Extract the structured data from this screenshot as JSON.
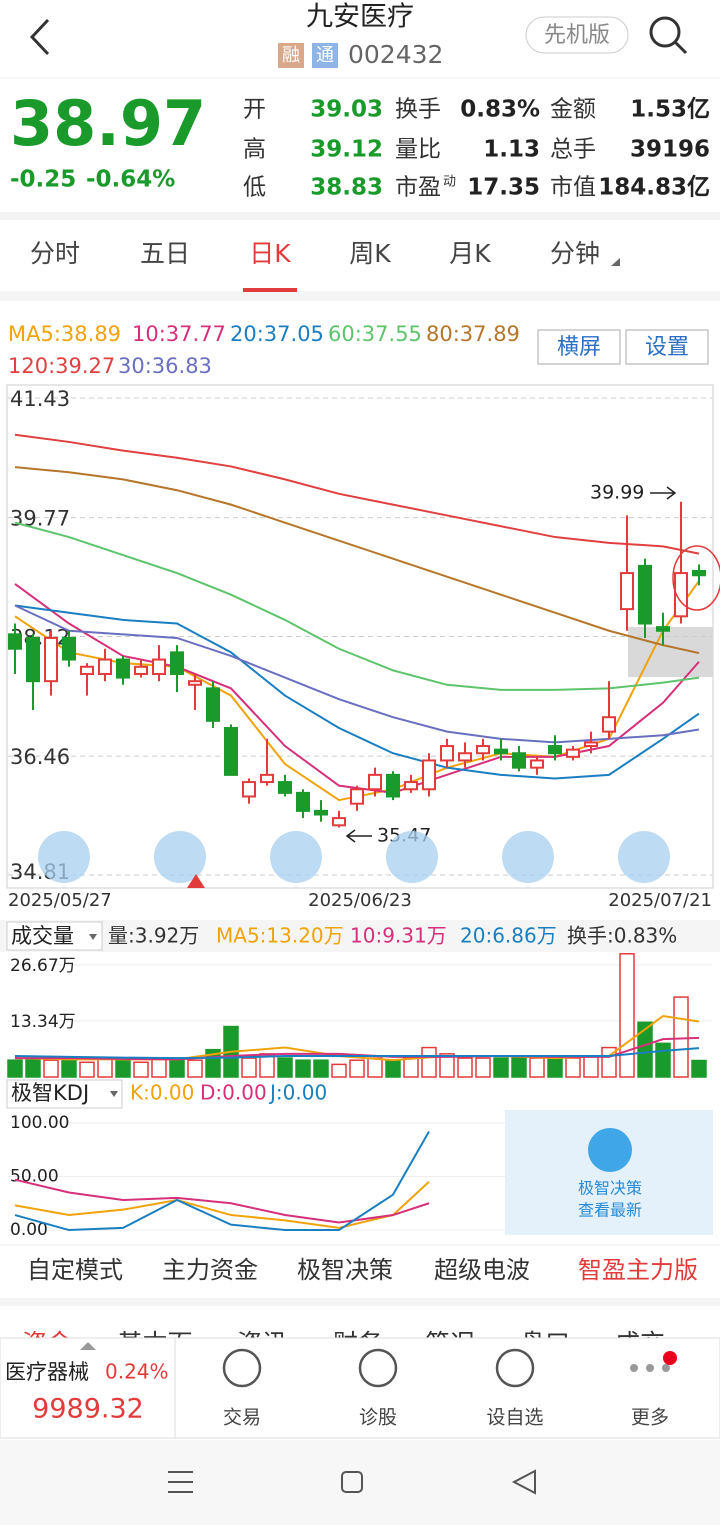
{
  "header": {
    "title": "九安医疗",
    "tags": [
      "融",
      "通"
    ],
    "code": "002432",
    "mode": "先机版"
  },
  "quote": {
    "price": "38.97",
    "change": "-0.25",
    "pct": "-0.64%",
    "fields": [
      {
        "label": "开",
        "value": "39.03"
      },
      {
        "label": "换手",
        "value": "0.83%"
      },
      {
        "label": "金额",
        "value": "1.53亿"
      },
      {
        "label": "高",
        "value": "39.12"
      },
      {
        "label": "量比",
        "value": "1.13"
      },
      {
        "label": "总手",
        "value": "39196"
      },
      {
        "label": "低",
        "value": "38.83"
      },
      {
        "label": "市盈",
        "sup": "动",
        "value": "17.35"
      },
      {
        "label": "市值",
        "value": "184.83亿"
      }
    ]
  },
  "tabs": [
    "分时",
    "五日",
    "日K",
    "周K",
    "月K",
    "分钟"
  ],
  "active_tab": 2,
  "buttons": [
    "横屏",
    "设置"
  ],
  "chart": {
    "type": "candlestick",
    "ylim": [
      34.63,
      41.61
    ],
    "yticks": [
      41.43,
      39.77,
      38.12,
      36.46,
      34.81
    ],
    "x_labels": [
      "2025/05/27",
      "2025/06/23",
      "2025/07/21"
    ],
    "up_color": "#e23b3b",
    "down_color": "#1a9a2a",
    "candles": [
      [
        38.15,
        38.3,
        37.6,
        37.95
      ],
      [
        38.1,
        38.15,
        37.1,
        37.5
      ],
      [
        37.5,
        38.2,
        37.3,
        38.1
      ],
      [
        38.1,
        38.2,
        37.7,
        37.8
      ],
      [
        37.6,
        37.75,
        37.3,
        37.7
      ],
      [
        37.6,
        37.95,
        37.5,
        37.8
      ],
      [
        37.8,
        37.85,
        37.45,
        37.55
      ],
      [
        37.6,
        37.8,
        37.55,
        37.7
      ],
      [
        37.6,
        38.0,
        37.5,
        37.8
      ],
      [
        37.9,
        38.0,
        37.35,
        37.6
      ],
      [
        37.45,
        37.6,
        37.1,
        37.5
      ],
      [
        37.4,
        37.5,
        36.85,
        36.95
      ],
      [
        36.85,
        36.9,
        36.2,
        36.2
      ],
      [
        35.9,
        36.15,
        35.8,
        36.1
      ],
      [
        36.1,
        36.7,
        36.05,
        36.2
      ],
      [
        36.1,
        36.2,
        35.9,
        35.95
      ],
      [
        35.95,
        36.0,
        35.6,
        35.7
      ],
      [
        35.7,
        35.85,
        35.55,
        35.65
      ],
      [
        35.5,
        35.7,
        35.47,
        35.6
      ],
      [
        35.8,
        36.05,
        35.7,
        36.0
      ],
      [
        36.0,
        36.3,
        35.9,
        36.2
      ],
      [
        36.2,
        36.25,
        35.85,
        35.9
      ],
      [
        36.0,
        36.2,
        35.95,
        36.1
      ],
      [
        36.0,
        36.5,
        35.9,
        36.4
      ],
      [
        36.4,
        36.7,
        36.3,
        36.6
      ],
      [
        36.4,
        36.65,
        36.3,
        36.5
      ],
      [
        36.5,
        36.7,
        36.4,
        36.6
      ],
      [
        36.55,
        36.7,
        36.4,
        36.5
      ],
      [
        36.5,
        36.6,
        36.25,
        36.3
      ],
      [
        36.3,
        36.45,
        36.2,
        36.4
      ],
      [
        36.6,
        36.75,
        36.4,
        36.5
      ],
      [
        36.45,
        36.6,
        36.4,
        36.55
      ],
      [
        36.6,
        36.8,
        36.5,
        36.65
      ],
      [
        36.8,
        37.5,
        36.7,
        37.0
      ],
      [
        38.5,
        39.8,
        38.2,
        39.0
      ],
      [
        39.1,
        39.2,
        38.1,
        38.3
      ],
      [
        38.25,
        38.45,
        38.0,
        38.2
      ],
      [
        38.4,
        39.99,
        38.3,
        39.0
      ],
      [
        39.03,
        39.12,
        38.83,
        38.97
      ]
    ],
    "annotations": [
      "39.99",
      "35.47"
    ],
    "ma_x": [
      0,
      3,
      6,
      9,
      12,
      15,
      18,
      21,
      24,
      27,
      30,
      33,
      36,
      38
    ],
    "mas": [
      {
        "label": "MA5:38.89",
        "color": "#f0a30a",
        "values": [
          38.4,
          37.9,
          37.75,
          37.7,
          37.3,
          36.35,
          35.85,
          36.0,
          36.3,
          36.5,
          36.45,
          36.7,
          38.2,
          38.89
        ]
      },
      {
        "label": "10:37.77",
        "color": "#d6307a",
        "values": [
          38.85,
          38.3,
          37.85,
          37.7,
          37.4,
          36.6,
          36.05,
          35.95,
          36.2,
          36.45,
          36.45,
          36.6,
          37.2,
          37.77
        ]
      },
      {
        "label": "20:37.05",
        "color": "#1a7fc1",
        "values": [
          38.55,
          38.45,
          38.35,
          38.3,
          37.9,
          37.3,
          36.85,
          36.5,
          36.3,
          36.2,
          36.15,
          36.2,
          36.7,
          37.05
        ]
      },
      {
        "label": "60:37.55",
        "color": "#5ec46c",
        "values": [
          39.7,
          39.5,
          39.25,
          39.0,
          38.7,
          38.35,
          37.95,
          37.65,
          37.45,
          37.38,
          37.38,
          37.4,
          37.48,
          37.55
        ]
      },
      {
        "label": "80:37.89",
        "color": "#b5762a",
        "values": [
          40.47,
          40.4,
          40.3,
          40.15,
          39.95,
          39.7,
          39.45,
          39.2,
          38.95,
          38.7,
          38.45,
          38.2,
          38.0,
          37.89
        ]
      },
      {
        "label": "120:39.27",
        "color": "#e04040",
        "values": [
          40.92,
          40.82,
          40.7,
          40.6,
          40.48,
          40.3,
          40.1,
          39.95,
          39.8,
          39.65,
          39.5,
          39.42,
          39.37,
          39.27
        ]
      },
      {
        "label": "30:36.83",
        "color": "#6a6fc0",
        "values": [
          38.55,
          38.2,
          38.15,
          38.1,
          37.85,
          37.55,
          37.25,
          37.0,
          36.8,
          36.7,
          36.65,
          36.7,
          36.75,
          36.83
        ]
      }
    ]
  },
  "volume": {
    "selector": "成交量",
    "legend": [
      {
        "text": "量:3.92万",
        "color": "#333"
      },
      {
        "text": "MA5:13.20万",
        "color": "#f0a30a"
      },
      {
        "text": "10:9.31万",
        "color": "#d6307a"
      },
      {
        "text": "20:6.86万",
        "color": "#1a7fc1"
      },
      {
        "text": "换手:0.83%",
        "color": "#333"
      }
    ],
    "ylim": [
      0,
      30.2
    ],
    "yticks": [
      {
        "value": 26.67,
        "label": "26.67万"
      },
      {
        "value": 13.34,
        "label": "13.34万"
      }
    ],
    "values": [
      4,
      4.5,
      4,
      4,
      3.5,
      4.5,
      4,
      3.5,
      4.5,
      4.5,
      4,
      6.5,
      12,
      4.5,
      5.5,
      4.5,
      4,
      4,
      3,
      4,
      4.5,
      4,
      4.5,
      7,
      5.5,
      4.5,
      4.5,
      4.5,
      4.5,
      4.5,
      4.5,
      4.5,
      5,
      7,
      29.3,
      13,
      8,
      19,
      3.92
    ],
    "mas": [
      {
        "color": "#f0a30a",
        "values": [
          4.5,
          4.2,
          4.2,
          4.2,
          6,
          7,
          5,
          4,
          5,
          5,
          4.5,
          5,
          14.5,
          13.2
        ]
      },
      {
        "color": "#d6307a",
        "values": [
          4.5,
          4.5,
          4.3,
          4.2,
          5,
          5.5,
          5.5,
          4.8,
          4.8,
          5,
          4.8,
          4.8,
          9,
          9.31
        ]
      },
      {
        "color": "#1a7fc1",
        "values": [
          5,
          4.8,
          4.6,
          4.5,
          4.6,
          5,
          5,
          5,
          5,
          5,
          5,
          5,
          6.2,
          6.86
        ]
      }
    ]
  },
  "kdj": {
    "selector": "极智KDJ",
    "legend": [
      {
        "text": "K:0.00",
        "color": "#f0a30a"
      },
      {
        "text": "D:0.00",
        "color": "#d6307a"
      },
      {
        "text": "J:0.00",
        "color": "#1a7fc1"
      }
    ],
    "ylim": [
      -9.3,
      112
    ],
    "yticks": [
      {
        "value": 100,
        "label": "100.00"
      },
      {
        "value": 50,
        "label": "50.00"
      },
      {
        "value": 0,
        "label": "0.00"
      }
    ],
    "x": [
      0,
      3,
      6,
      9,
      12,
      15,
      18,
      21,
      23
    ],
    "series": [
      {
        "color": "#f0a30a",
        "values": [
          23,
          14,
          19,
          28,
          14,
          9,
          2,
          14,
          45
        ]
      },
      {
        "color": "#d6307a",
        "values": [
          47,
          35,
          28,
          30,
          25,
          14,
          7,
          14,
          25
        ]
      },
      {
        "color": "#1a7fc1",
        "values": [
          14,
          0,
          2,
          28,
          5,
          0,
          0,
          33,
          92
        ]
      }
    ],
    "promo": [
      "极智决策",
      "查看最新"
    ]
  },
  "bottom_tabs": [
    "自定模式",
    "主力资金",
    "极智决策",
    "超级电波",
    "智盈主力版"
  ],
  "info_tabs": [
    "资金",
    "基本面",
    "资讯",
    "财务",
    "简况",
    "盘口",
    "成交"
  ],
  "index": {
    "name": "医疗器械",
    "pct": "0.24%",
    "value": "9989.32"
  },
  "nav": [
    "交易",
    "诊股",
    "设自选",
    "更多"
  ]
}
